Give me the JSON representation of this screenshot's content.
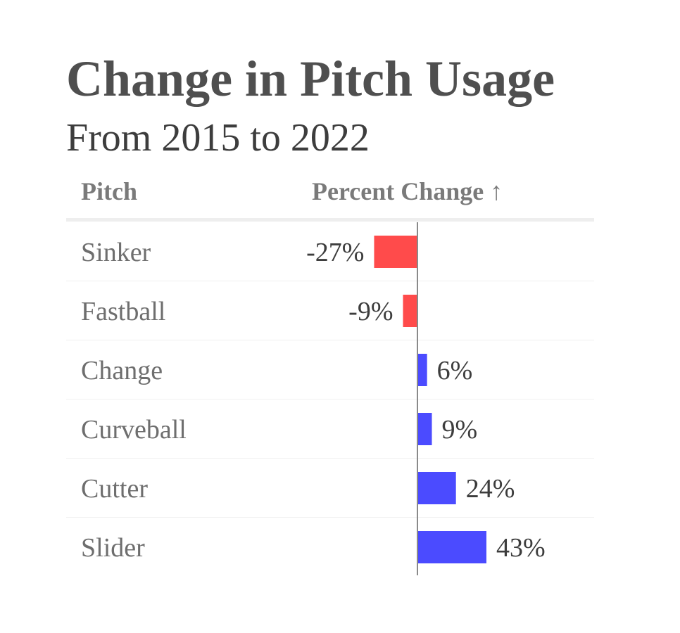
{
  "title": "Change in Pitch Usage",
  "subtitle": "From 2015 to 2022",
  "columns": {
    "pitch": "Pitch",
    "change": "Percent Change ↑"
  },
  "colors": {
    "negative": "#ff4b4b",
    "positive": "#4b4bff",
    "zero_line": "#8a8a8a",
    "header_rule": "#eeeeee",
    "row_rule": "#f0f0f0"
  },
  "chart_data": {
    "type": "bar",
    "orientation": "horizontal",
    "title": "Change in Pitch Usage",
    "subtitle": "From 2015 to 2022",
    "categories": [
      "Sinker",
      "Fastball",
      "Change",
      "Curveball",
      "Cutter",
      "Slider"
    ],
    "values": [
      -27,
      -9,
      6,
      9,
      24,
      43
    ],
    "labels": [
      "-27%",
      "-9%",
      "6%",
      "9%",
      "24%",
      "43%"
    ],
    "unit": "%",
    "sort": "ascending",
    "xlim": [
      -43,
      43
    ],
    "grid": false,
    "legend": "none"
  }
}
